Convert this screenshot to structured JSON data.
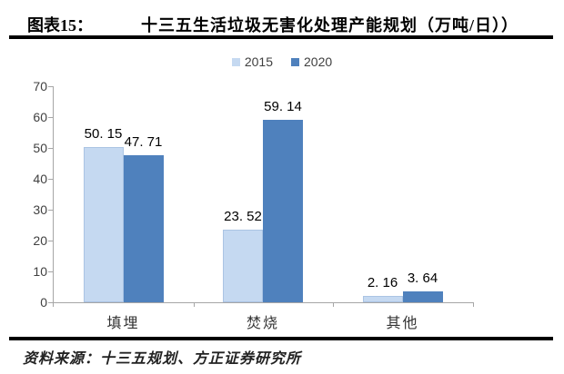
{
  "header": {
    "figure_label": "图表15：",
    "title": "十三五生活垃圾无害化处理产能规划（万吨/日））"
  },
  "legend": [
    {
      "label": "2015",
      "color": "#c5d9f1"
    },
    {
      "label": "2020",
      "color": "#4f81bd"
    }
  ],
  "source": "资料来源：十三五规划、方正证券研究所",
  "chart_data": {
    "type": "bar",
    "title": "十三五生活垃圾无害化处理产能规划（万吨/日））",
    "categories": [
      "填埋",
      "焚烧",
      "其他"
    ],
    "series": [
      {
        "name": "2015",
        "color": "#c5d9f1",
        "values": [
          50.15,
          23.52,
          2.16
        ],
        "labels": [
          "50. 15",
          "23. 52",
          "2. 16"
        ]
      },
      {
        "name": "2020",
        "color": "#4f81bd",
        "values": [
          47.71,
          59.14,
          3.64
        ],
        "labels": [
          "47. 71",
          "59. 14",
          "3. 64"
        ]
      }
    ],
    "ylabel": "",
    "xlabel": "",
    "yticks": [
      0,
      10,
      20,
      30,
      40,
      50,
      60,
      70
    ],
    "ylim": [
      0,
      70
    ],
    "grid": false,
    "legend_position": "top",
    "value_labels": "outside-end"
  }
}
